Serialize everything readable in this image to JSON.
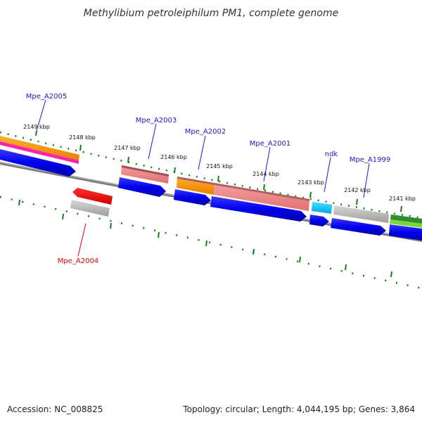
{
  "header": {
    "title": "Methylibium petroleiphilum PM1, complete genome"
  },
  "footer": {
    "accession": "Accession: NC_008825",
    "topology": "Topology: circular; Length: 4,044,195 bp; Genes: 3,864"
  },
  "map": {
    "kbp_labels": [
      "2149 kbp",
      "2148 kbp",
      "2147 kbp",
      "2146 kbp",
      "2145 kbp",
      "2144 kbp",
      "2143 kbp",
      "2142 kbp",
      "2141 kbp"
    ],
    "gene_labels": [
      {
        "name": "Mpe_A2005",
        "strand": "forward"
      },
      {
        "name": "Mpe_A2003",
        "strand": "forward"
      },
      {
        "name": "Mpe_A2002",
        "strand": "forward"
      },
      {
        "name": "Mpe_A2001",
        "strand": "forward"
      },
      {
        "name": "ndk",
        "strand": "forward"
      },
      {
        "name": "Mpe_A1999",
        "strand": "forward"
      },
      {
        "name": "Mpe_A2004",
        "strand": "reverse"
      }
    ]
  },
  "colors": {
    "forward_label": "#1a1acc",
    "reverse_label": "#dd0000",
    "cds": "#0000ee",
    "tick": "#1a7a1a",
    "backbone": "#777777"
  }
}
